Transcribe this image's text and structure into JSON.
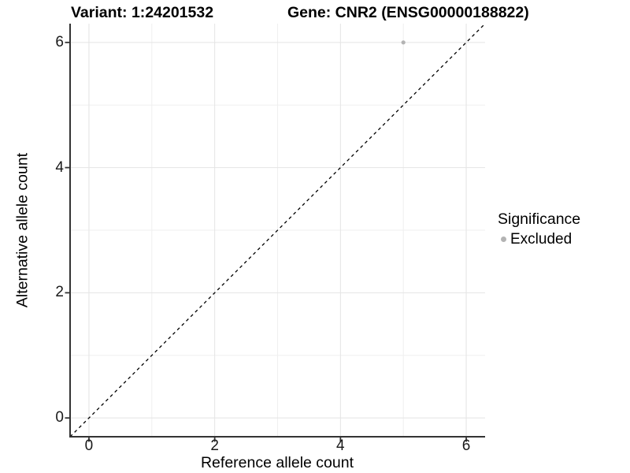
{
  "colors": {
    "background": "#ffffff",
    "point": "#b3b3b3",
    "grid_major": "#e4e4e4",
    "grid_minor": "#efefef",
    "axis_line": "#333333",
    "tick_mark": "#333333",
    "text": "#000000",
    "tick_text": "#1a1a1a",
    "ref_line": "#000000"
  },
  "chart_data": {
    "type": "scatter",
    "titles": {
      "left": "Variant: 1:24201532",
      "right": "Gene: CNR2 (ENSG00000188822)"
    },
    "xlabel": "Reference allele count",
    "ylabel": "Alternative allele count",
    "xlim": [
      -0.3,
      6.3
    ],
    "ylim": [
      -0.3,
      6.3
    ],
    "x_ticks": [
      0,
      2,
      4,
      6
    ],
    "y_ticks": [
      0,
      2,
      4,
      6
    ],
    "grid": "major and minor gridlines, white panel",
    "reference_line": {
      "type": "identity y=x",
      "style": "dashed",
      "color": "#000000"
    },
    "series": [
      {
        "name": "Excluded",
        "color": "#b3b3b3",
        "points": [
          {
            "x": 5,
            "y": 6
          }
        ]
      }
    ],
    "legend": {
      "title": "Significance",
      "position": "right",
      "entries": [
        {
          "label": "Excluded",
          "color": "#b3b3b3"
        }
      ]
    }
  }
}
